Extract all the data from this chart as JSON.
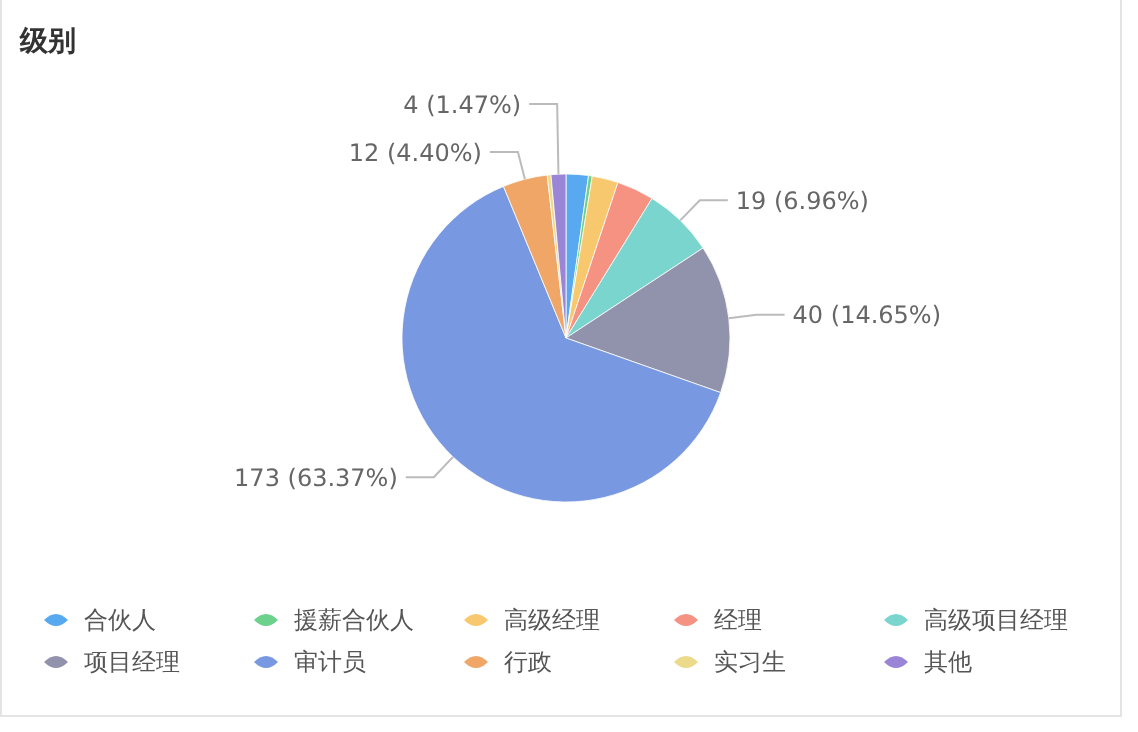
{
  "chart_data": {
    "type": "pie",
    "title": "级别",
    "categories": [
      "合伙人",
      "援薪合伙人",
      "高级经理",
      "经理",
      "高级项目经理",
      "项目经理",
      "审计员",
      "行政",
      "实习生",
      "其他"
    ],
    "values": [
      6,
      1,
      7,
      10,
      19,
      40,
      173,
      12,
      1,
      4
    ],
    "colors": [
      "#58a9f0",
      "#6bd18b",
      "#f7c86e",
      "#f59282",
      "#7ad5cf",
      "#9192ab",
      "#7898e1",
      "#efa666",
      "#edd98a",
      "#9b85d6"
    ],
    "value_labels": [
      null,
      null,
      null,
      null,
      "19 (6.96%)",
      "40 (14.65%)",
      "173 (63.37%)",
      "12 (4.40%)",
      null,
      "4 (1.47%)"
    ],
    "legend": "bottom"
  }
}
